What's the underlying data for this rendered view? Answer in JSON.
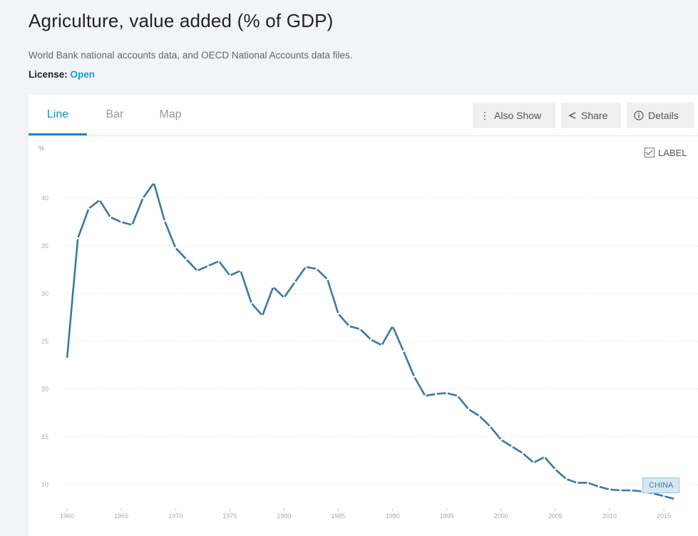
{
  "header": {
    "title": "Agriculture, value added (% of GDP)",
    "source": "World Bank national accounts data, and OECD National Accounts data files.",
    "license_label": "License:",
    "license_value": "Open"
  },
  "tabs": [
    {
      "label": "Line",
      "active": true
    },
    {
      "label": "Bar",
      "active": false
    },
    {
      "label": "Map",
      "active": false
    }
  ],
  "toolbar": {
    "also_show": "Also Show",
    "share": "Share",
    "details": "Details"
  },
  "label_toggle": {
    "text": "LABEL",
    "checked": true
  },
  "colors": {
    "accent": "#1a8cc8",
    "line": "#3a78a8"
  },
  "chart_data": {
    "type": "line",
    "ylabel": "%",
    "xlabel": "",
    "ylim": [
      8,
      43
    ],
    "xlim": [
      1960,
      2017
    ],
    "yticks": [
      10,
      15,
      20,
      25,
      30,
      35,
      40
    ],
    "xticks": [
      1960,
      1965,
      1970,
      1975,
      1980,
      1985,
      1990,
      1995,
      2000,
      2005,
      2010,
      2015
    ],
    "grid": true,
    "series": [
      {
        "name": "CHINA",
        "x": [
          1960,
          1961,
          1962,
          1963,
          1964,
          1965,
          1966,
          1967,
          1968,
          1969,
          1970,
          1971,
          1972,
          1973,
          1974,
          1975,
          1976,
          1977,
          1978,
          1979,
          1980,
          1981,
          1982,
          1983,
          1984,
          1985,
          1986,
          1987,
          1988,
          1989,
          1990,
          1991,
          1992,
          1993,
          1994,
          1995,
          1996,
          1997,
          1998,
          1999,
          2000,
          2001,
          2002,
          2003,
          2004,
          2005,
          2006,
          2007,
          2008,
          2009,
          2010,
          2011,
          2012,
          2013,
          2014,
          2015,
          2016
        ],
        "values": [
          23.2,
          35.8,
          38.9,
          39.8,
          38.0,
          37.5,
          37.2,
          40.0,
          41.6,
          37.6,
          34.8,
          33.6,
          32.4,
          32.9,
          33.4,
          31.9,
          32.4,
          29.0,
          27.7,
          30.7,
          29.6,
          31.2,
          32.8,
          32.6,
          31.5,
          27.9,
          26.6,
          26.3,
          25.2,
          24.6,
          26.6,
          24.0,
          21.3,
          19.3,
          19.5,
          19.6,
          19.3,
          17.9,
          17.2,
          16.1,
          14.7,
          14.0,
          13.3,
          12.3,
          12.9,
          11.6,
          10.6,
          10.2,
          10.2,
          9.8,
          9.5,
          9.4,
          9.4,
          9.3,
          9.1,
          8.8,
          8.5
        ]
      }
    ],
    "annotations": [
      "CHINA"
    ]
  }
}
